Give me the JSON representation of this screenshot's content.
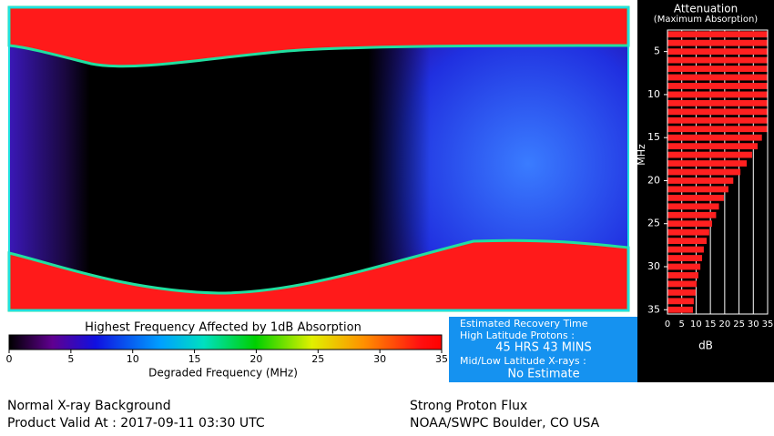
{
  "colorbar": {
    "title": "Highest Frequency Affected by 1dB Absorption",
    "label": "Degraded Frequency (MHz)",
    "lim": [
      0,
      35
    ],
    "ticks": [
      0,
      5,
      10,
      15,
      20,
      25,
      30,
      35
    ]
  },
  "recovery": {
    "title": "Estimated Recovery Time",
    "line1": "High Latitude Protons :",
    "value1": "45 HRS 43 MINS",
    "line2": "Mid/Low Latitude X-rays :",
    "value2": "No Estimate"
  },
  "footer": {
    "xray": "Normal X-ray Background",
    "valid": "Product Valid At : 2017-09-11 03:30 UTC",
    "proton": "Strong Proton Flux",
    "source": "NOAA/SWPC Boulder, CO USA"
  },
  "chart_data": {
    "type": "bar",
    "orientation": "horizontal",
    "title": "Attenuation",
    "subtitle": "(Maximum Absorption)",
    "ylabel": "MHz",
    "xlabel": "dB",
    "color": "#ff2020",
    "y": [
      3,
      4,
      5,
      6,
      7,
      8,
      9,
      10,
      11,
      12,
      13,
      14,
      15,
      16,
      17,
      18,
      19,
      20,
      21,
      22,
      23,
      24,
      25,
      26,
      27,
      28,
      29,
      30,
      31,
      32,
      33,
      34,
      35
    ],
    "values": [
      35,
      35,
      35,
      35,
      35,
      35,
      35,
      35,
      35,
      35,
      35,
      35,
      33,
      31.5,
      29.6,
      27.7,
      25.5,
      23,
      21.3,
      19.7,
      18,
      17,
      15.6,
      14.6,
      13.7,
      12.7,
      12.1,
      11.5,
      10.8,
      10.2,
      9.9,
      9.2,
      8.9
    ],
    "ylim": [
      2.5,
      35.5
    ],
    "yticks": [
      5,
      10,
      15,
      20,
      25,
      30,
      35
    ],
    "xlim": [
      0,
      35
    ],
    "xticks": [
      0,
      5,
      10,
      15,
      20,
      25,
      30,
      35
    ],
    "grid": true
  }
}
